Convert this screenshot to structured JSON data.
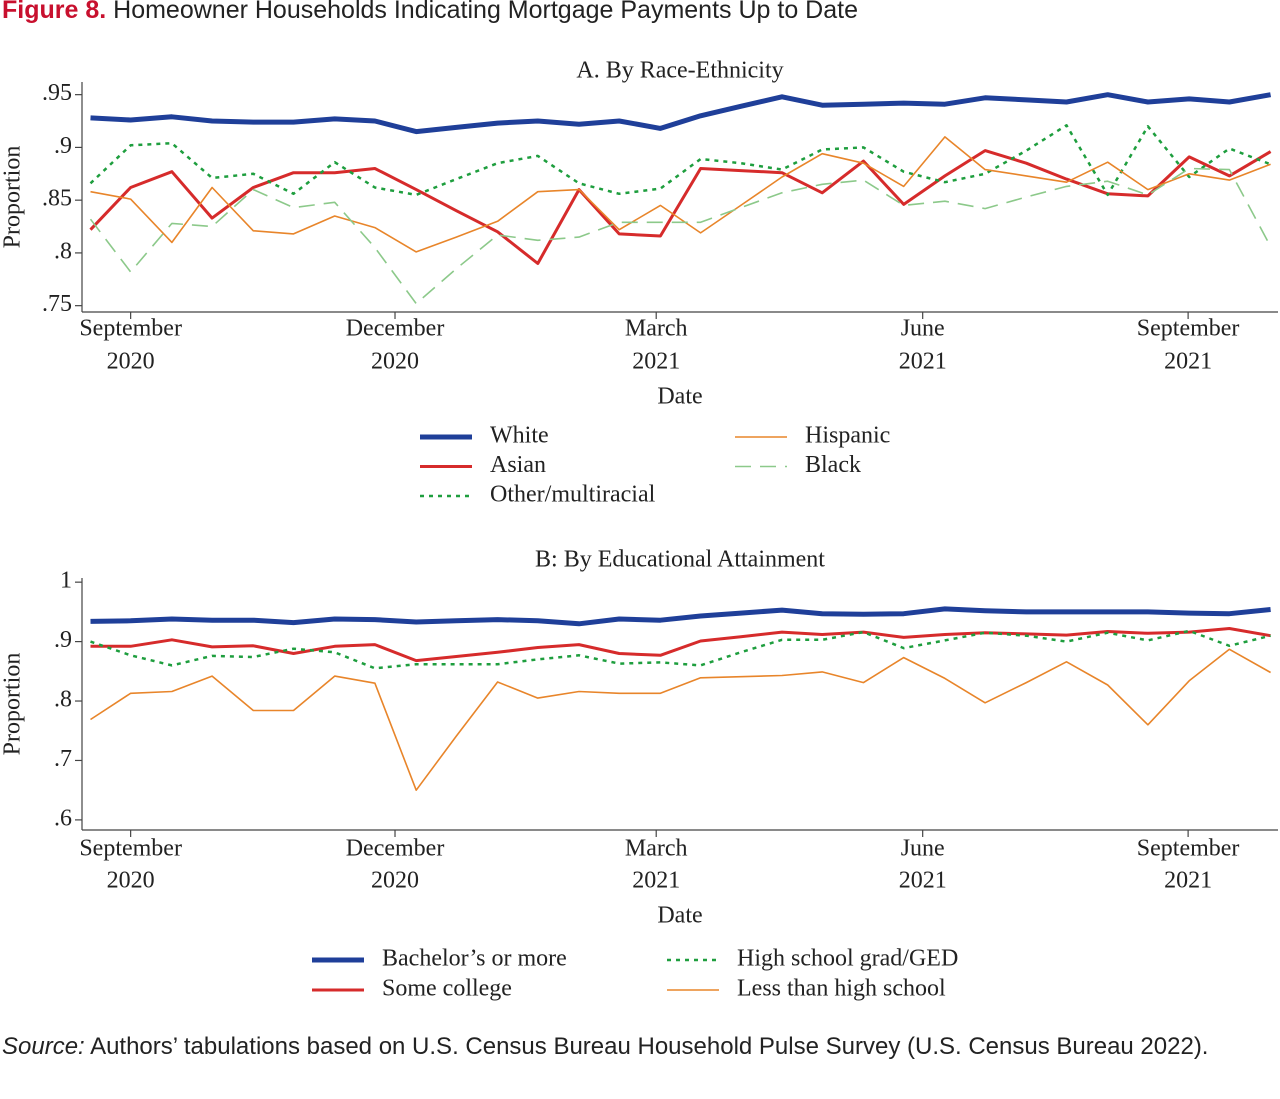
{
  "figure": {
    "label": "Figure 8.",
    "title": "Homeowner Households Indicating Mortgage Payments Up to Date"
  },
  "source": {
    "label": "Source:",
    "text": "Authors’ tabulations based on U.S. Census Bureau Household Pulse Survey (U.S. Census Bureau 2022)."
  },
  "chart_data": [
    {
      "type": "line",
      "title": "A. By Race-Ethnicity",
      "x_label": "Date",
      "y_label": "Proportion",
      "x": [
        2020.629,
        2020.667,
        2020.706,
        2020.744,
        2020.783,
        2020.821,
        2020.86,
        2020.898,
        2020.937,
        2020.975,
        2021.014,
        2021.052,
        2021.091,
        2021.129,
        2021.168,
        2021.206,
        2021.244,
        2021.283,
        2021.321,
        2021.36,
        2021.398,
        2021.437,
        2021.475,
        2021.514,
        2021.552,
        2021.591,
        2021.629,
        2021.668,
        2021.706,
        2021.745
      ],
      "xlim": [
        2020.621,
        2021.752
      ],
      "xticks": [
        {
          "value": 2020.667,
          "label": [
            "September",
            "2020"
          ]
        },
        {
          "value": 2020.917,
          "label": [
            "December",
            "2020"
          ]
        },
        {
          "value": 2021.164,
          "label": [
            "March",
            "2021"
          ]
        },
        {
          "value": 2021.416,
          "label": [
            "June",
            "2021"
          ]
        },
        {
          "value": 2021.667,
          "label": [
            "September",
            "2021"
          ]
        }
      ],
      "ylim": [
        0.744,
        0.962
      ],
      "yticks": [
        {
          "value": 0.75,
          "label": ".75"
        },
        {
          "value": 0.8,
          "label": ".8"
        },
        {
          "value": 0.85,
          "label": ".85"
        },
        {
          "value": 0.9,
          "label": ".9"
        },
        {
          "value": 0.95,
          "label": ".95"
        }
      ],
      "series": [
        {
          "name": "White",
          "color": "#1f3f99",
          "line_style": "solid",
          "linewidth": 5,
          "values": [
            0.928,
            0.926,
            0.929,
            0.925,
            0.924,
            0.924,
            0.927,
            0.925,
            0.915,
            0.919,
            0.923,
            0.925,
            0.922,
            0.925,
            0.918,
            0.93,
            0.939,
            0.948,
            0.94,
            0.941,
            0.942,
            0.941,
            0.947,
            0.945,
            0.943,
            0.95,
            0.943,
            0.946,
            0.943,
            0.95
          ]
        },
        {
          "name": "Asian",
          "color": "#d62b2b",
          "line_style": "solid",
          "linewidth": 3,
          "values": [
            0.822,
            0.862,
            0.877,
            0.833,
            0.862,
            0.876,
            0.876,
            0.88,
            0.86,
            0.84,
            0.82,
            0.79,
            0.86,
            0.818,
            0.816,
            0.88,
            0.878,
            0.876,
            0.857,
            0.887,
            0.846,
            0.873,
            0.897,
            0.885,
            0.87,
            0.856,
            0.854,
            0.891,
            0.873,
            0.896
          ]
        },
        {
          "name": "Other/multiracial",
          "color": "#1e9e3e",
          "line_style": "dotted",
          "linewidth": 2.5,
          "values": [
            0.866,
            0.902,
            0.904,
            0.871,
            0.875,
            0.856,
            0.886,
            0.862,
            0.855,
            0.87,
            0.885,
            0.892,
            0.866,
            0.856,
            0.861,
            0.889,
            0.885,
            0.879,
            0.898,
            0.9,
            0.877,
            0.867,
            0.875,
            0.897,
            0.921,
            0.855,
            0.92,
            0.872,
            0.899,
            0.884
          ]
        },
        {
          "name": "Hispanic",
          "color": "#e8852a",
          "line_style": "solid",
          "linewidth": 1.6,
          "values": [
            0.858,
            0.851,
            0.81,
            0.862,
            0.821,
            0.818,
            0.835,
            0.824,
            0.801,
            0.815,
            0.83,
            0.858,
            0.86,
            0.822,
            0.845,
            0.819,
            0.845,
            0.872,
            0.894,
            0.885,
            0.863,
            0.91,
            0.879,
            0.873,
            0.867,
            0.886,
            0.86,
            0.875,
            0.869,
            0.884
          ]
        },
        {
          "name": "Black",
          "color": "#8cc98a",
          "line_style": "dashed",
          "linewidth": 1.6,
          "values": [
            0.832,
            0.782,
            0.828,
            0.825,
            0.86,
            0.843,
            0.848,
            0.805,
            0.752,
            0.785,
            0.817,
            0.812,
            0.815,
            0.829,
            0.829,
            0.829,
            0.843,
            0.857,
            0.865,
            0.869,
            0.845,
            0.849,
            0.842,
            0.853,
            0.863,
            0.868,
            0.855,
            0.88,
            0.879,
            0.806
          ]
        }
      ]
    },
    {
      "type": "line",
      "title": "B: By Educational Attainment",
      "x_label": "Date",
      "y_label": "Proportion",
      "x": [
        2020.629,
        2020.667,
        2020.706,
        2020.744,
        2020.783,
        2020.821,
        2020.86,
        2020.898,
        2020.937,
        2020.975,
        2021.014,
        2021.052,
        2021.091,
        2021.129,
        2021.168,
        2021.206,
        2021.244,
        2021.283,
        2021.321,
        2021.36,
        2021.398,
        2021.437,
        2021.475,
        2021.514,
        2021.552,
        2021.591,
        2021.629,
        2021.668,
        2021.706,
        2021.745
      ],
      "xlim": [
        2020.621,
        2021.752
      ],
      "xticks": [
        {
          "value": 2020.667,
          "label": [
            "September",
            "2020"
          ]
        },
        {
          "value": 2020.917,
          "label": [
            "December",
            "2020"
          ]
        },
        {
          "value": 2021.164,
          "label": [
            "March",
            "2021"
          ]
        },
        {
          "value": 2021.416,
          "label": [
            "June",
            "2021"
          ]
        },
        {
          "value": 2021.667,
          "label": [
            "September",
            "2021"
          ]
        }
      ],
      "ylim": [
        0.583,
        1.007
      ],
      "yticks": [
        {
          "value": 0.6,
          "label": ".6"
        },
        {
          "value": 0.7,
          "label": ".7"
        },
        {
          "value": 0.8,
          "label": ".8"
        },
        {
          "value": 0.9,
          "label": ".9"
        },
        1
      ],
      "series": [
        {
          "name": "Bachelor’s or more",
          "color": "#1f3f99",
          "line_style": "solid",
          "linewidth": 5,
          "values": [
            0.934,
            0.935,
            0.938,
            0.936,
            0.936,
            0.932,
            0.938,
            0.937,
            0.933,
            0.935,
            0.937,
            0.935,
            0.93,
            0.938,
            0.936,
            0.943,
            0.948,
            0.953,
            0.947,
            0.946,
            0.947,
            0.955,
            0.952,
            0.95,
            0.95,
            0.95,
            0.95,
            0.948,
            0.947,
            0.954
          ]
        },
        {
          "name": "Some college",
          "color": "#d62b2b",
          "line_style": "solid",
          "linewidth": 3,
          "values": [
            0.892,
            0.892,
            0.903,
            0.891,
            0.893,
            0.88,
            0.892,
            0.895,
            0.868,
            0.875,
            0.882,
            0.89,
            0.895,
            0.88,
            0.877,
            0.901,
            0.908,
            0.916,
            0.912,
            0.916,
            0.907,
            0.912,
            0.915,
            0.913,
            0.911,
            0.917,
            0.914,
            0.916,
            0.922,
            0.91
          ]
        },
        {
          "name": "High school grad/GED",
          "color": "#1e9e3e",
          "line_style": "dotted",
          "linewidth": 2.5,
          "values": [
            0.9,
            0.877,
            0.86,
            0.876,
            0.874,
            0.888,
            0.882,
            0.855,
            0.862,
            0.862,
            0.862,
            0.87,
            0.877,
            0.863,
            0.865,
            0.86,
            0.882,
            0.903,
            0.903,
            0.916,
            0.889,
            0.902,
            0.915,
            0.91,
            0.9,
            0.915,
            0.902,
            0.918,
            0.893,
            0.91
          ]
        },
        {
          "name": "Less than high school",
          "color": "#e8852a",
          "line_style": "solid",
          "linewidth": 1.6,
          "values": [
            0.769,
            0.813,
            0.816,
            0.842,
            0.784,
            0.784,
            0.842,
            0.83,
            0.65,
            0.741,
            0.832,
            0.805,
            0.816,
            0.813,
            0.813,
            0.839,
            0.841,
            0.843,
            0.849,
            0.831,
            0.873,
            0.838,
            0.797,
            0.831,
            0.866,
            0.827,
            0.76,
            0.834,
            0.887,
            0.848
          ]
        }
      ]
    }
  ]
}
